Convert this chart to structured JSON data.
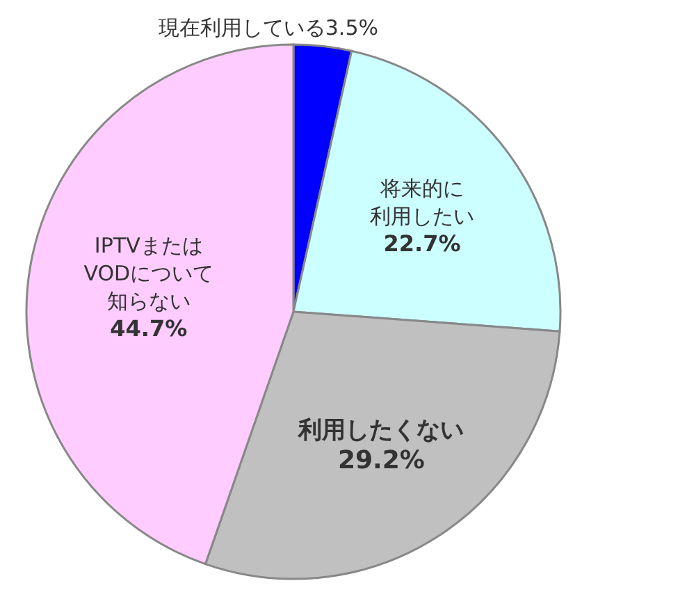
{
  "chart_data": {
    "type": "pie",
    "categories": [
      "現在利用している",
      "将来的に利用したい",
      "利用したくない",
      "IPTVまたはVODについて知らない"
    ],
    "values": [
      3.5,
      22.7,
      29.2,
      44.7
    ],
    "colors": [
      "#0000ff",
      "#ccffff",
      "#c0c0c0",
      "#ffccff"
    ],
    "value_labels": [
      "3.5%",
      "22.7%",
      "29.2%",
      "44.7%"
    ]
  }
}
